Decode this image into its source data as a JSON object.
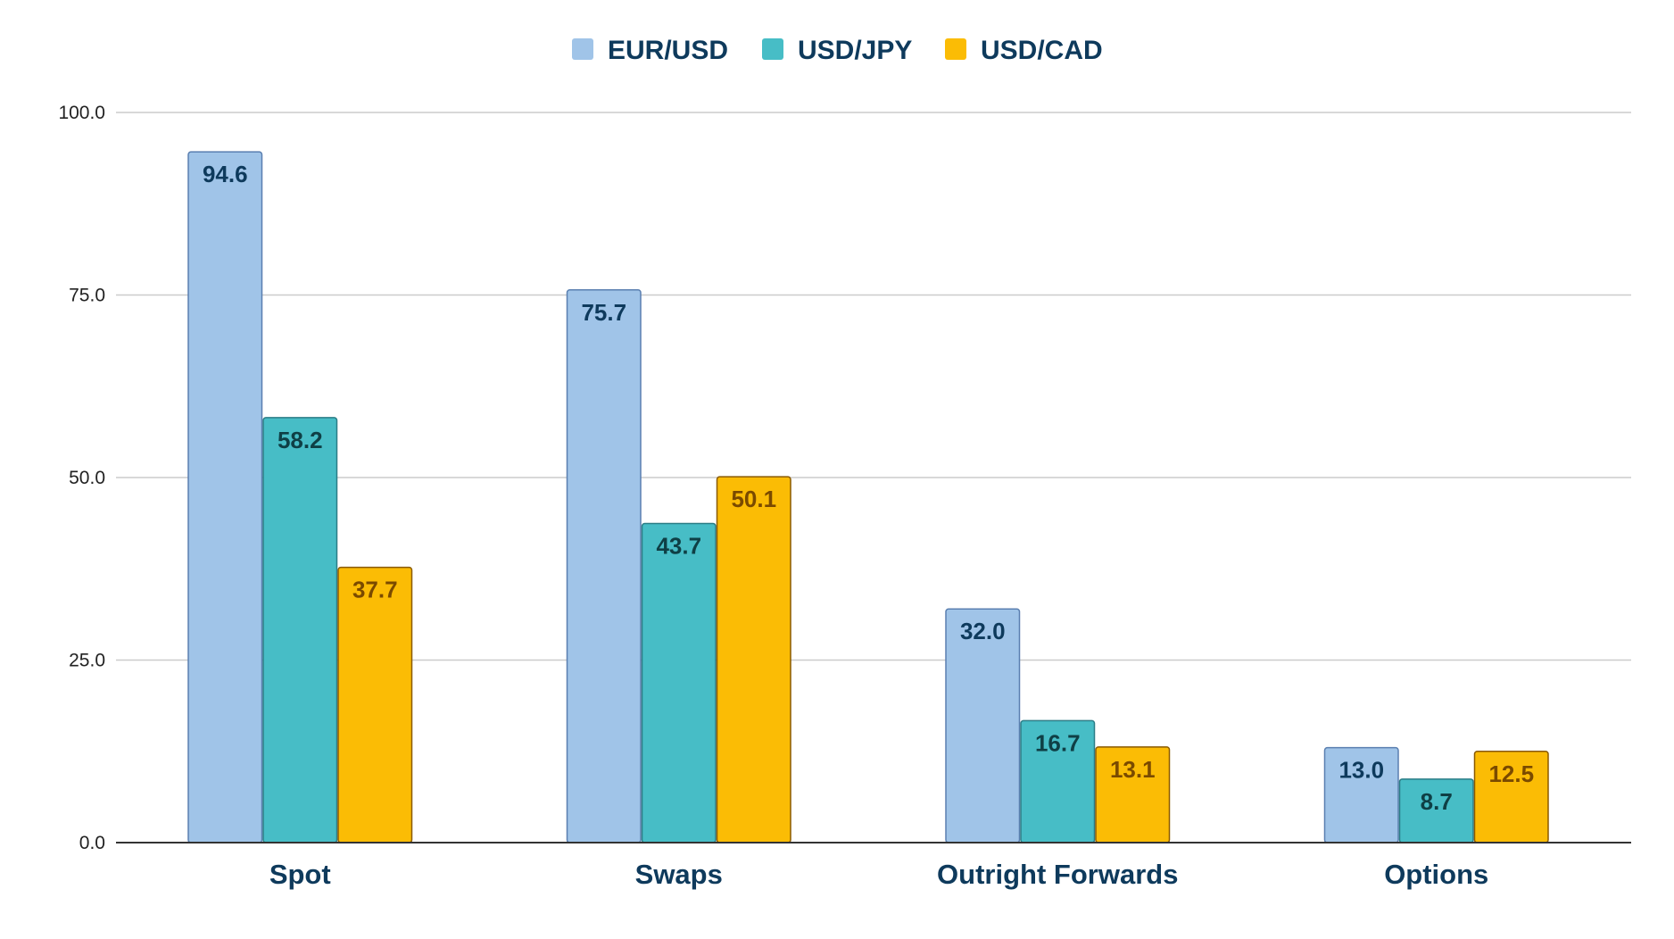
{
  "chart_data": {
    "type": "bar",
    "title": "",
    "xlabel": "",
    "ylabel": "",
    "categories": [
      "Spot",
      "Swaps",
      "Outright Forwards",
      "Options"
    ],
    "series": [
      {
        "name": "EUR/USD",
        "values": [
          94.6,
          75.7,
          32.0,
          13.0
        ],
        "color": "#a0c4e8",
        "stroke": "#5a7fb0",
        "label_color": "#0e3a5c"
      },
      {
        "name": "USD/JPY",
        "values": [
          58.2,
          43.7,
          16.7,
          8.7
        ],
        "color": "#47bdc6",
        "stroke": "#2b7d86",
        "label_color": "#0f3f45"
      },
      {
        "name": "USD/CAD",
        "values": [
          37.7,
          50.1,
          13.1,
          12.5
        ],
        "color": "#fbbc05",
        "stroke": "#8a5a00",
        "label_color": "#7a4a00"
      }
    ],
    "ylim": [
      0,
      100
    ],
    "yticks": [
      "0.0",
      "25.0",
      "50.0",
      "75.0",
      "100.0"
    ],
    "grid": true,
    "legend": "top-center",
    "data_labels": true
  }
}
